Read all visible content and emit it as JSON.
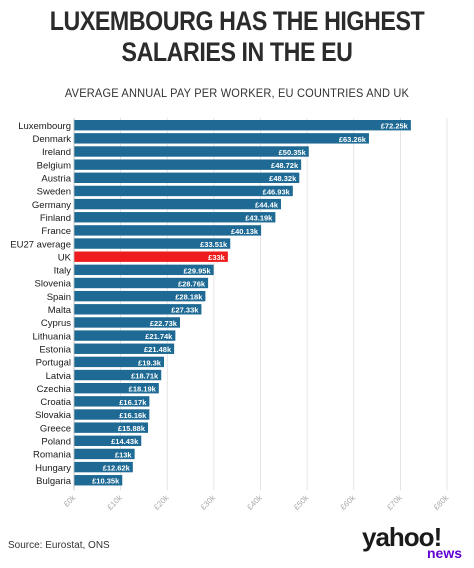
{
  "header": {
    "title_line1": "LUXEMBOURG HAS THE HIGHEST",
    "title_line2": "SALARIES IN THE EU",
    "subtitle": "AVERAGE ANNUAL PAY PER WORKER, EU COUNTRIES AND UK"
  },
  "footer": {
    "source": "Source: Eurostat, ONS",
    "logo_main": "yahoo!",
    "logo_sub": "news"
  },
  "colors": {
    "bar": "#1e6a94",
    "highlight": "#ee1c1c",
    "grid": "#dddddd",
    "axis_text": "#aaaaaa"
  },
  "chart_data": {
    "type": "bar",
    "orientation": "horizontal",
    "title": "LUXEMBOURG HAS THE HIGHEST SALARIES IN THE EU",
    "subtitle": "AVERAGE ANNUAL PAY PER WORKER, EU COUNTRIES AND UK",
    "categories": [
      "Luxembourg",
      "Denmark",
      "Ireland",
      "Belgium",
      "Austria",
      "Sweden",
      "Germany",
      "Finland",
      "France",
      "EU27 average",
      "UK",
      "Italy",
      "Slovenia",
      "Spain",
      "Malta",
      "Cyprus",
      "Lithuania",
      "Estonia",
      "Portugal",
      "Latvia",
      "Czechia",
      "Croatia",
      "Slovakia",
      "Greece",
      "Poland",
      "Romania",
      "Hungary",
      "Bulgaria"
    ],
    "values": [
      72.25,
      63.26,
      50.35,
      48.72,
      48.32,
      46.93,
      44.4,
      43.19,
      40.13,
      33.51,
      33,
      29.95,
      28.76,
      28.18,
      27.33,
      22.73,
      21.74,
      21.48,
      19.3,
      18.71,
      18.19,
      16.17,
      16.16,
      15.88,
      14.43,
      13,
      12.62,
      10.35
    ],
    "data_labels": [
      "£72.25k",
      "£63.26k",
      "£50.35k",
      "£48.72k",
      "£48.32k",
      "£46.93k",
      "£44.4k",
      "£43.19k",
      "£40.13k",
      "£33.51k",
      "£33k",
      "£29.95k",
      "£28.76k",
      "£28.18k",
      "£27.33k",
      "£22.73k",
      "£21.74k",
      "£21.48k",
      "£19.3k",
      "£18.71k",
      "£18.19k",
      "£16.17k",
      "£16.16k",
      "£15.88k",
      "£14.43k",
      "£13k",
      "£12.62k",
      "£10.35k"
    ],
    "highlight": "UK",
    "xlim": [
      0,
      80
    ],
    "x_ticks": [
      0,
      10,
      20,
      30,
      40,
      50,
      60,
      70,
      80
    ],
    "x_tick_labels": [
      "£0k",
      "£10k",
      "£20k",
      "£30k",
      "£40k",
      "£50k",
      "£60k",
      "£70k",
      "£80k"
    ],
    "grid": true,
    "legend": "none"
  }
}
